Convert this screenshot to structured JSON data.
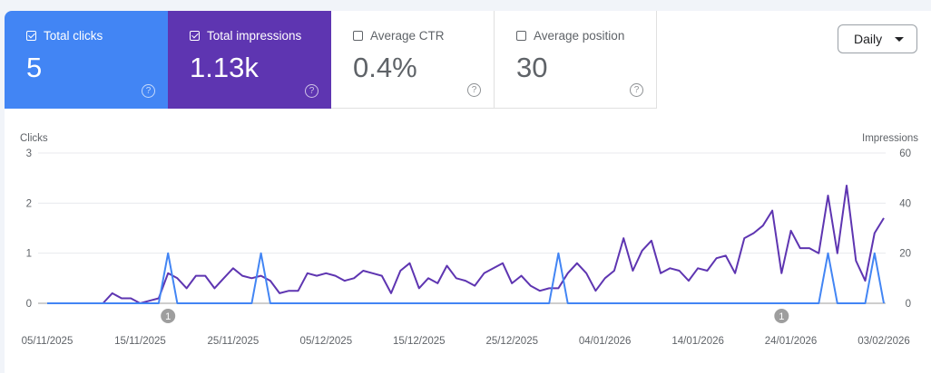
{
  "metrics": [
    {
      "label": "Total clicks",
      "value": "5",
      "checked": true,
      "color": "#4285f4"
    },
    {
      "label": "Total impressions",
      "value": "1.13k",
      "checked": true,
      "color": "#5e35b1"
    },
    {
      "label": "Average CTR",
      "value": "0.4%",
      "checked": false
    },
    {
      "label": "Average position",
      "value": "30",
      "checked": false
    }
  ],
  "period_select": {
    "value": "Daily"
  },
  "chart_data": {
    "type": "line",
    "left_axis_label": "Clicks",
    "right_axis_label": "Impressions",
    "left_ylim": [
      0,
      3
    ],
    "left_ticks": [
      "0",
      "1",
      "2",
      "3"
    ],
    "right_ylim": [
      0,
      60
    ],
    "right_ticks": [
      "0",
      "20",
      "40",
      "60"
    ],
    "x_start": "05/11/2025",
    "x_end": "03/02/2026",
    "x_tick_labels": [
      "05/11/2025",
      "15/11/2025",
      "25/11/2025",
      "05/12/2025",
      "15/12/2025",
      "25/12/2025",
      "04/01/2026",
      "14/01/2026",
      "24/01/2026",
      "03/02/2026"
    ],
    "grid": true,
    "series": [
      {
        "name": "Clicks",
        "axis": "left",
        "color": "#4285f4",
        "values": [
          0,
          0,
          0,
          0,
          0,
          0,
          0,
          0,
          0,
          0,
          0,
          0,
          0,
          1,
          0,
          0,
          0,
          0,
          0,
          0,
          0,
          0,
          0,
          1,
          0,
          0,
          0,
          0,
          0,
          0,
          0,
          0,
          0,
          0,
          0,
          0,
          0,
          0,
          0,
          0,
          0,
          0,
          0,
          0,
          0,
          0,
          0,
          0,
          0,
          0,
          0,
          0,
          0,
          0,
          0,
          1,
          0,
          0,
          0,
          0,
          0,
          0,
          0,
          0,
          0,
          0,
          0,
          0,
          0,
          0,
          0,
          0,
          0,
          0,
          0,
          0,
          0,
          0,
          0,
          0,
          0,
          0,
          0,
          0,
          1,
          0,
          0,
          0,
          0,
          1,
          0
        ]
      },
      {
        "name": "Impressions",
        "axis": "right",
        "color": "#5e35b1",
        "values": [
          0,
          0,
          0,
          0,
          0,
          0,
          0,
          4,
          2,
          2,
          0,
          1,
          2,
          12,
          10,
          6,
          11,
          11,
          6,
          10,
          14,
          11,
          10,
          11,
          9,
          4,
          5,
          5,
          12,
          11,
          12,
          11,
          9,
          10,
          13,
          12,
          11,
          4,
          13,
          16,
          6,
          10,
          8,
          15,
          10,
          9,
          7,
          12,
          14,
          16,
          8,
          11,
          7,
          5,
          6,
          6,
          12,
          16,
          12,
          5,
          10,
          13,
          26,
          13,
          21,
          25,
          12,
          14,
          13,
          9,
          14,
          13,
          18,
          19,
          12,
          26,
          28,
          31,
          37,
          12,
          29,
          22,
          22,
          20,
          43,
          20,
          47,
          17,
          9,
          28,
          34
        ]
      }
    ],
    "annotations": [
      {
        "date": "18/11/2025",
        "label": "1"
      },
      {
        "date": "23/01/2026",
        "label": "1"
      }
    ]
  }
}
